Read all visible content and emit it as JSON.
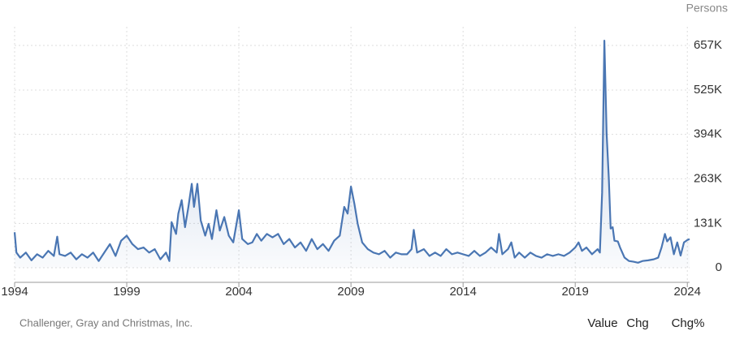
{
  "chart_data": {
    "type": "area",
    "unit_label": "Persons",
    "source": "Challenger, Gray and Christmas, Inc.",
    "tabs": [
      "Value",
      "Chg",
      "Chg%"
    ],
    "active_tab": 0,
    "color": "#4a76b3",
    "grid": true,
    "xlim": [
      1994,
      2024.1
    ],
    "xticks": [
      1994,
      1999,
      2004,
      2009,
      2014,
      2019,
      2024
    ],
    "ylim": [
      -43000,
      712000
    ],
    "yticks": [
      0,
      {
        "value": 131000,
        "label": "131K"
      },
      {
        "value": 263000,
        "label": "263K"
      },
      {
        "value": 394000,
        "label": "394K"
      },
      {
        "value": 525000,
        "label": "525K"
      },
      {
        "value": 657000,
        "label": "657K"
      }
    ],
    "series": [
      {
        "name": "Value",
        "x": [
          1994.0,
          1994.08,
          1994.25,
          1994.5,
          1994.75,
          1995.0,
          1995.25,
          1995.5,
          1995.75,
          1995.9,
          1996.0,
          1996.25,
          1996.5,
          1996.75,
          1997.0,
          1997.25,
          1997.5,
          1997.75,
          1998.0,
          1998.25,
          1998.5,
          1998.75,
          1999.0,
          1999.25,
          1999.5,
          1999.75,
          2000.0,
          2000.25,
          2000.5,
          2000.75,
          2000.9,
          2001.0,
          2001.2,
          2001.3,
          2001.45,
          2001.6,
          2001.75,
          2001.9,
          2002.0,
          2002.15,
          2002.3,
          2002.5,
          2002.65,
          2002.8,
          2003.0,
          2003.15,
          2003.35,
          2003.55,
          2003.75,
          2004.0,
          2004.15,
          2004.4,
          2004.6,
          2004.8,
          2005.0,
          2005.25,
          2005.5,
          2005.75,
          2006.0,
          2006.25,
          2006.5,
          2006.75,
          2007.0,
          2007.25,
          2007.5,
          2007.75,
          2008.0,
          2008.25,
          2008.5,
          2008.7,
          2008.85,
          2009.0,
          2009.15,
          2009.3,
          2009.5,
          2009.75,
          2010.0,
          2010.25,
          2010.5,
          2010.75,
          2011.0,
          2011.25,
          2011.5,
          2011.7,
          2011.8,
          2011.95,
          2012.25,
          2012.5,
          2012.75,
          2013.0,
          2013.25,
          2013.5,
          2013.75,
          2014.0,
          2014.25,
          2014.5,
          2014.75,
          2015.0,
          2015.25,
          2015.5,
          2015.6,
          2015.75,
          2016.0,
          2016.15,
          2016.3,
          2016.5,
          2016.75,
          2017.0,
          2017.25,
          2017.5,
          2017.75,
          2018.0,
          2018.25,
          2018.5,
          2018.75,
          2019.0,
          2019.15,
          2019.3,
          2019.5,
          2019.75,
          2020.0,
          2020.1,
          2020.2,
          2020.3,
          2020.4,
          2020.5,
          2020.58,
          2020.67,
          2020.75,
          2020.9,
          2021.0,
          2021.2,
          2021.4,
          2021.6,
          2021.8,
          2022.0,
          2022.25,
          2022.5,
          2022.7,
          2022.85,
          2023.0,
          2023.1,
          2023.25,
          2023.4,
          2023.55,
          2023.7,
          2023.85,
          2024.0,
          2024.1
        ],
        "values": [
          105000,
          45000,
          30000,
          45000,
          22000,
          40000,
          30000,
          50000,
          35000,
          92000,
          40000,
          35000,
          45000,
          25000,
          40000,
          30000,
          45000,
          20000,
          45000,
          70000,
          35000,
          80000,
          95000,
          70000,
          55000,
          60000,
          45000,
          55000,
          25000,
          45000,
          20000,
          135000,
          100000,
          160000,
          200000,
          120000,
          180000,
          248000,
          180000,
          248000,
          140000,
          95000,
          130000,
          85000,
          170000,
          110000,
          150000,
          95000,
          75000,
          170000,
          85000,
          70000,
          75000,
          100000,
          80000,
          100000,
          90000,
          100000,
          70000,
          85000,
          60000,
          75000,
          50000,
          85000,
          55000,
          70000,
          50000,
          80000,
          95000,
          180000,
          160000,
          240000,
          190000,
          130000,
          75000,
          55000,
          45000,
          40000,
          50000,
          30000,
          45000,
          40000,
          40000,
          55000,
          112000,
          45000,
          55000,
          35000,
          45000,
          35000,
          55000,
          40000,
          45000,
          40000,
          35000,
          50000,
          35000,
          45000,
          60000,
          45000,
          100000,
          40000,
          55000,
          75000,
          30000,
          45000,
          30000,
          45000,
          35000,
          30000,
          40000,
          35000,
          40000,
          35000,
          45000,
          60000,
          75000,
          50000,
          60000,
          40000,
          55000,
          45000,
          222000,
          671000,
          398000,
          262000,
          116000,
          120000,
          80000,
          78000,
          60000,
          30000,
          20000,
          18000,
          15000,
          20000,
          22000,
          25000,
          30000,
          60000,
          100000,
          78000,
          90000,
          40000,
          75000,
          36000,
          75000,
          82000,
          85000
        ]
      }
    ]
  }
}
